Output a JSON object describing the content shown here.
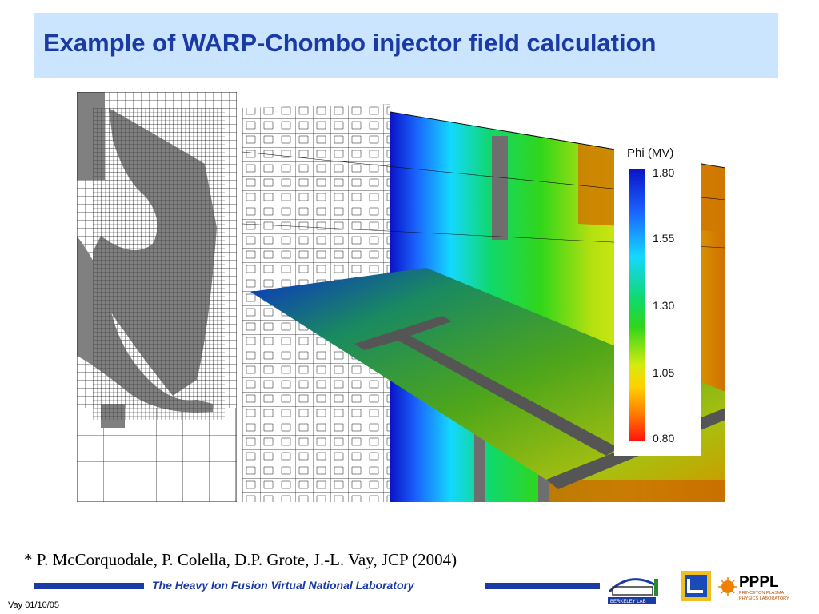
{
  "slide": {
    "title": "Example of WARP-Chombo injector field calculation",
    "citation": "* P. McCorquodale, P. Colella, D.P. Grote, J.-L. Vay, JCP (2004)",
    "footer_label": "The Heavy Ion Fusion Virtual National Laboratory",
    "date_stamp": "Vay 01/10/05"
  },
  "colorbar": {
    "title": "Phi (MV)",
    "ticks": [
      "1.80",
      "1.55",
      "1.30",
      "1.05",
      "0.80"
    ]
  },
  "logos": {
    "berkeley": "BERKELEY LAB",
    "pppl": "PPPL",
    "pppl_sub1": "PRINCETON PLASMA",
    "pppl_sub2": "PHYSICS LABORATORY"
  },
  "colors": {
    "title_bg": "#cce5ff",
    "title_text": "#1a3aa6",
    "footer_line": "#1a3aa6"
  }
}
